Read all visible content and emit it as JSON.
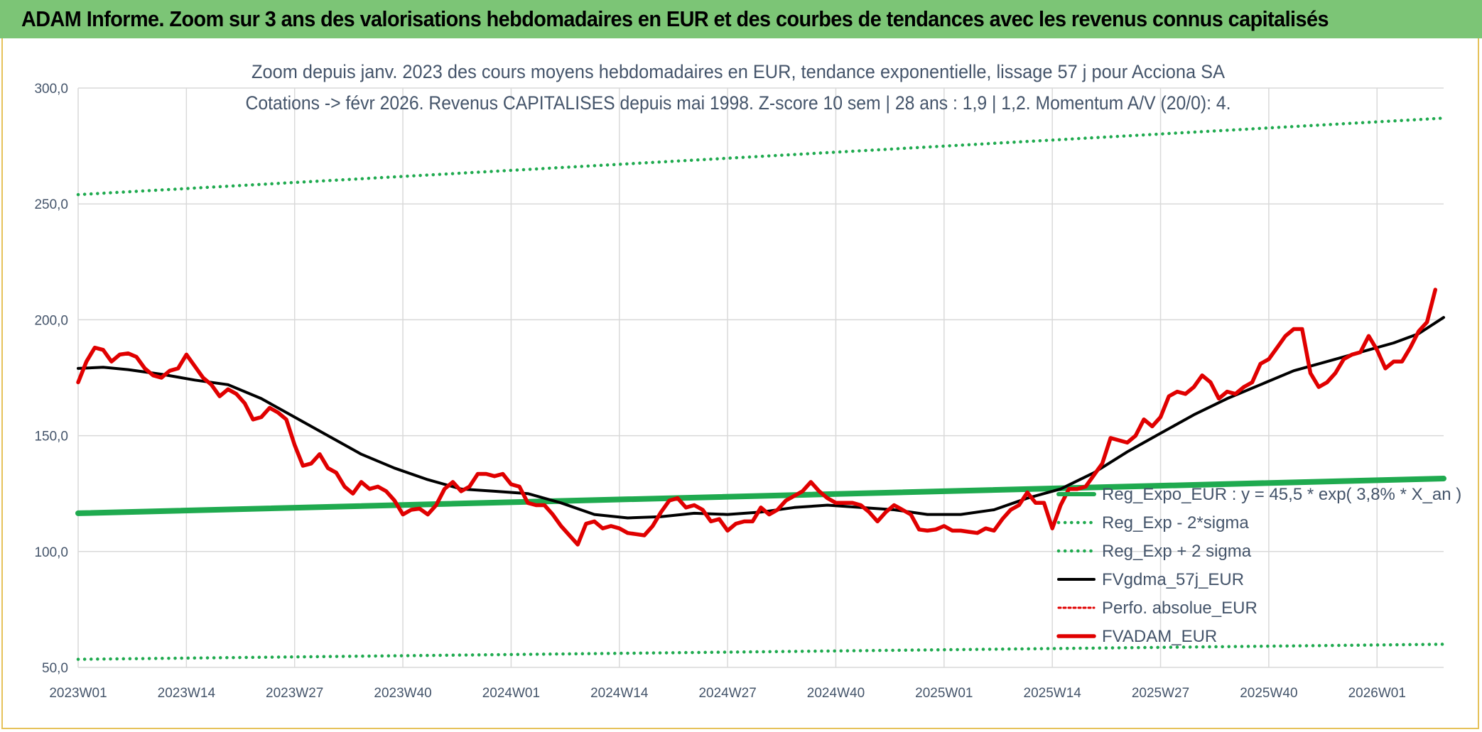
{
  "banner": {
    "title": "ADAM Informe. Zoom sur 3 ans des valorisations hebdomadaires en EUR et des courbes de tendances avec les revenus connus capitalisés"
  },
  "colors": {
    "banner_bg": "#7cc576",
    "frame_border": "#e6c25a",
    "reg_expo": "#1faa4f",
    "sigma_lines": "#1faa4f",
    "fvgdma": "#000000",
    "perfo": "#e00000",
    "fvadam": "#e00000",
    "grid": "#d9d9d9",
    "text": "#44546a"
  },
  "chart_data": {
    "type": "line",
    "title_line1": "Zoom depuis janv. 2023 des cours moyens hebdomadaires en EUR, tendance exponentielle, lissage 57 j pour Acciona SA",
    "title_line2": "Cotations -> févr 2026. Revenus CAPITALISES depuis mai 1998. Z-score 10 sem | 28 ans : 1,9 | 1,2. Momentum A/V (20/0): 4.",
    "xlabel": "",
    "ylabel": "",
    "ylim": [
      50,
      300
    ],
    "yticks": [
      "50,0",
      "100,0",
      "150,0",
      "200,0",
      "250,0",
      "300,0"
    ],
    "ytick_values": [
      50,
      100,
      150,
      200,
      250,
      300
    ],
    "xticks": [
      "2023W01",
      "2023W14",
      "2023W27",
      "2023W40",
      "2024W01",
      "2024W14",
      "2024W27",
      "2024W40",
      "2025W01",
      "2025W14",
      "2025W27",
      "2025W40",
      "2026W01"
    ],
    "xtick_week_index": [
      0,
      13,
      26,
      39,
      52,
      65,
      78,
      91,
      104,
      117,
      130,
      143,
      156
    ],
    "week_count": 164,
    "grid": true,
    "legend_position": "bottom-right",
    "series": [
      {
        "name": "Reg_Expo_EUR : y = 45,5 * exp( 3,8% *  X_an )",
        "style": "thick-solid",
        "points": [
          [
            0,
            116.5
          ],
          [
            164,
            131.5
          ]
        ]
      },
      {
        "name": "Reg_Exp - 2*sigma",
        "style": "dotted",
        "points": [
          [
            0,
            53.5
          ],
          [
            164,
            60.0
          ]
        ]
      },
      {
        "name": "Reg_Exp + 2 sigma",
        "style": "dotted",
        "points": [
          [
            0,
            254.0
          ],
          [
            164,
            287.0
          ]
        ]
      },
      {
        "name": "FVgdma_57j_EUR",
        "style": "solid",
        "points": [
          [
            0,
            179
          ],
          [
            3,
            179.5
          ],
          [
            6,
            178.5
          ],
          [
            10,
            176.5
          ],
          [
            14,
            174
          ],
          [
            18,
            172
          ],
          [
            22,
            166
          ],
          [
            26,
            158
          ],
          [
            30,
            150
          ],
          [
            34,
            142
          ],
          [
            38,
            136
          ],
          [
            42,
            131
          ],
          [
            46,
            127
          ],
          [
            50,
            126
          ],
          [
            54,
            125
          ],
          [
            58,
            121
          ],
          [
            62,
            116
          ],
          [
            66,
            114.5
          ],
          [
            70,
            115
          ],
          [
            74,
            116.5
          ],
          [
            78,
            116
          ],
          [
            82,
            117
          ],
          [
            86,
            119
          ],
          [
            90,
            120
          ],
          [
            94,
            119
          ],
          [
            98,
            118
          ],
          [
            102,
            116
          ],
          [
            106,
            116
          ],
          [
            110,
            118
          ],
          [
            114,
            123
          ],
          [
            118,
            127
          ],
          [
            122,
            134
          ],
          [
            126,
            143
          ],
          [
            130,
            151
          ],
          [
            134,
            159
          ],
          [
            138,
            166
          ],
          [
            142,
            172
          ],
          [
            146,
            178
          ],
          [
            150,
            182
          ],
          [
            154,
            186
          ],
          [
            158,
            190
          ],
          [
            161,
            194
          ],
          [
            164,
            201
          ]
        ]
      },
      {
        "name": "Perfo. absolue_EUR",
        "style": "dotted",
        "points": []
      },
      {
        "name": "FVADAM_EUR",
        "style": "thick-solid",
        "points": [
          [
            0,
            173
          ],
          [
            1,
            182
          ],
          [
            2,
            188
          ],
          [
            3,
            187
          ],
          [
            4,
            182
          ],
          [
            5,
            185
          ],
          [
            6,
            185.5
          ],
          [
            7,
            184
          ],
          [
            8,
            179
          ],
          [
            9,
            176
          ],
          [
            10,
            175
          ],
          [
            11,
            178
          ],
          [
            12,
            179
          ],
          [
            13,
            185
          ],
          [
            14,
            180
          ],
          [
            15,
            175
          ],
          [
            16,
            172
          ],
          [
            17,
            167
          ],
          [
            18,
            170
          ],
          [
            19,
            168
          ],
          [
            20,
            164
          ],
          [
            21,
            157
          ],
          [
            22,
            158
          ],
          [
            23,
            162
          ],
          [
            24,
            160
          ],
          [
            25,
            157
          ],
          [
            26,
            146
          ],
          [
            27,
            137
          ],
          [
            28,
            138
          ],
          [
            29,
            142
          ],
          [
            30,
            136
          ],
          [
            31,
            134
          ],
          [
            32,
            128
          ],
          [
            33,
            125
          ],
          [
            34,
            130
          ],
          [
            35,
            127
          ],
          [
            36,
            128
          ],
          [
            37,
            126
          ],
          [
            38,
            122
          ],
          [
            39,
            116
          ],
          [
            40,
            118
          ],
          [
            41,
            118.5
          ],
          [
            42,
            116
          ],
          [
            43,
            120
          ],
          [
            44,
            127
          ],
          [
            45,
            130
          ],
          [
            46,
            126
          ],
          [
            47,
            128
          ],
          [
            48,
            133.5
          ],
          [
            49,
            133.5
          ],
          [
            50,
            132.5
          ],
          [
            51,
            133.5
          ],
          [
            52,
            129
          ],
          [
            53,
            128
          ],
          [
            54,
            121
          ],
          [
            55,
            120
          ],
          [
            56,
            120
          ],
          [
            57,
            116
          ],
          [
            58,
            111
          ],
          [
            59,
            107
          ],
          [
            60,
            103
          ],
          [
            61,
            112
          ],
          [
            62,
            113
          ],
          [
            63,
            110
          ],
          [
            64,
            111
          ],
          [
            65,
            110
          ],
          [
            66,
            108
          ],
          [
            67,
            107.5
          ],
          [
            68,
            107
          ],
          [
            69,
            111
          ],
          [
            70,
            117
          ],
          [
            71,
            122
          ],
          [
            72,
            123
          ],
          [
            73,
            119
          ],
          [
            74,
            120
          ],
          [
            75,
            118
          ],
          [
            76,
            113
          ],
          [
            77,
            114
          ],
          [
            78,
            109
          ],
          [
            79,
            112
          ],
          [
            80,
            113
          ],
          [
            81,
            113
          ],
          [
            82,
            119
          ],
          [
            83,
            116
          ],
          [
            84,
            118
          ],
          [
            85,
            122
          ],
          [
            86,
            124
          ],
          [
            87,
            126
          ],
          [
            88,
            130
          ],
          [
            89,
            126
          ],
          [
            90,
            123
          ],
          [
            91,
            121
          ],
          [
            92,
            121
          ],
          [
            93,
            121
          ],
          [
            94,
            120
          ],
          [
            95,
            117
          ],
          [
            96,
            113
          ],
          [
            97,
            117
          ],
          [
            98,
            120
          ],
          [
            99,
            118
          ],
          [
            100,
            116
          ],
          [
            101,
            109.5
          ],
          [
            102,
            109
          ],
          [
            103,
            109.5
          ],
          [
            104,
            111
          ],
          [
            105,
            109
          ],
          [
            106,
            109
          ],
          [
            107,
            108.5
          ],
          [
            108,
            108
          ],
          [
            109,
            110
          ],
          [
            110,
            109
          ],
          [
            111,
            114
          ],
          [
            112,
            118
          ],
          [
            113,
            120
          ],
          [
            114,
            125.5
          ],
          [
            115,
            121
          ],
          [
            116,
            121
          ],
          [
            117,
            110
          ],
          [
            118,
            120
          ],
          [
            119,
            127
          ],
          [
            120,
            127
          ],
          [
            121,
            128
          ],
          [
            122,
            133
          ],
          [
            123,
            138
          ],
          [
            124,
            149
          ],
          [
            125,
            148
          ],
          [
            126,
            147
          ],
          [
            127,
            150
          ],
          [
            128,
            157
          ],
          [
            129,
            154
          ],
          [
            130,
            158
          ],
          [
            131,
            167
          ],
          [
            132,
            169
          ],
          [
            133,
            168
          ],
          [
            134,
            171
          ],
          [
            135,
            176
          ],
          [
            136,
            173
          ],
          [
            137,
            166
          ],
          [
            138,
            169
          ],
          [
            139,
            168
          ],
          [
            140,
            171
          ],
          [
            141,
            173
          ],
          [
            142,
            181
          ],
          [
            143,
            183
          ],
          [
            144,
            188
          ],
          [
            145,
            193
          ],
          [
            146,
            196
          ],
          [
            147,
            196
          ],
          [
            148,
            177
          ],
          [
            149,
            171
          ],
          [
            150,
            173
          ],
          [
            151,
            177
          ],
          [
            152,
            183
          ],
          [
            153,
            185
          ],
          [
            154,
            186
          ],
          [
            155,
            193
          ],
          [
            156,
            187
          ],
          [
            157,
            179
          ],
          [
            158,
            182
          ],
          [
            159,
            182
          ],
          [
            160,
            188
          ],
          [
            161,
            195
          ],
          [
            162,
            199
          ],
          [
            163,
            213
          ]
        ]
      }
    ]
  }
}
